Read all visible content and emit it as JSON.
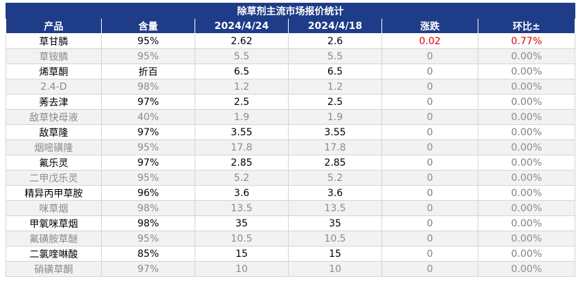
{
  "chart_data": {
    "type": "table",
    "title": "除草剂主流市场报价统计",
    "columns": [
      "产品",
      "含量",
      "2024/4/24",
      "2024/4/18",
      "涨跌",
      "环比±"
    ],
    "rows": [
      {
        "product": "草甘膦",
        "content": "95%",
        "price_new": "2.62",
        "price_old": "2.6",
        "change": "0.02",
        "pct": "0.77%"
      },
      {
        "product": "草铵膦",
        "content": "95%",
        "price_new": "5.5",
        "price_old": "5.5",
        "change": "0",
        "pct": "0.00%"
      },
      {
        "product": "烯草酮",
        "content": "折百",
        "price_new": "6.5",
        "price_old": "6.5",
        "change": "0",
        "pct": "0.00%"
      },
      {
        "product": "2.4-D",
        "content": "98%",
        "price_new": "1.2",
        "price_old": "1.2",
        "change": "0",
        "pct": "0.00%"
      },
      {
        "product": "莠去津",
        "content": "97%",
        "price_new": "2.5",
        "price_old": "2.5",
        "change": "0",
        "pct": "0.00%"
      },
      {
        "product": "敌草快母液",
        "content": "40%",
        "price_new": "1.9",
        "price_old": "1.9",
        "change": "0",
        "pct": "0.00%"
      },
      {
        "product": "敌草隆",
        "content": "97%",
        "price_new": "3.55",
        "price_old": "3.55",
        "change": "0",
        "pct": "0.00%"
      },
      {
        "product": "烟嘧磺隆",
        "content": "95%",
        "price_new": "17.8",
        "price_old": "17.8",
        "change": "0",
        "pct": "0.00%"
      },
      {
        "product": "氟乐灵",
        "content": "97%",
        "price_new": "2.85",
        "price_old": "2.85",
        "change": "0",
        "pct": "0.00%"
      },
      {
        "product": "二甲戊乐灵",
        "content": "95%",
        "price_new": "5.2",
        "price_old": "5.2",
        "change": "0",
        "pct": "0.00%"
      },
      {
        "product": "精异丙甲草胺",
        "content": "96%",
        "price_new": "3.6",
        "price_old": "3.6",
        "change": "0",
        "pct": "0.00%"
      },
      {
        "product": "咪草烟",
        "content": "98%",
        "price_new": "13.5",
        "price_old": "13.5",
        "change": "0",
        "pct": "0.00%"
      },
      {
        "product": "甲氧咪草烟",
        "content": "98%",
        "price_new": "35",
        "price_old": "35",
        "change": "0",
        "pct": "0.00%"
      },
      {
        "product": "氟磺胺草醚",
        "content": "95%",
        "price_new": "10.5",
        "price_old": "10.5",
        "change": "0",
        "pct": "0.00%"
      },
      {
        "product": "二氯喹啉酸",
        "content": "85%",
        "price_new": "15",
        "price_old": "15",
        "change": "0",
        "pct": "0.00%"
      },
      {
        "product": "硝磺草酮",
        "content": "97%",
        "price_new": "10",
        "price_old": "10",
        "change": "0",
        "pct": "0.00%"
      }
    ],
    "colors": {
      "header_bg": "#1f3c88",
      "header_text": "#ffffff",
      "positive_change": "#e00000",
      "muted_text": "#8a8a8a"
    }
  }
}
